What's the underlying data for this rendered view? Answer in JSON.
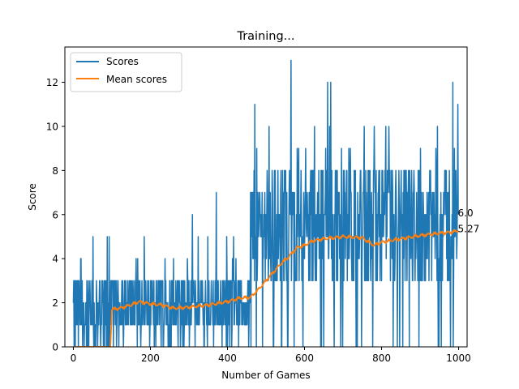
{
  "chart_data": {
    "type": "line",
    "title": "Training...",
    "xlabel": "Number of Games",
    "ylabel": "Score",
    "xlim": [
      -22,
      1022
    ],
    "ylim": [
      0,
      13.6
    ],
    "xticks": [
      0,
      200,
      400,
      600,
      800,
      1000
    ],
    "yticks": [
      0,
      2,
      4,
      6,
      8,
      10,
      12
    ],
    "grid": false,
    "legend_position": "top-left",
    "series": [
      {
        "name": "Scores",
        "color": "#1f77b4",
        "style": "noisy game scores",
        "n_games": 1000,
        "segments": [
          {
            "x_from": 0,
            "x_to": 95,
            "typical_low": 0,
            "typical_high": 3,
            "max": 5
          },
          {
            "x_from": 95,
            "x_to": 460,
            "typical_low": 1,
            "typical_high": 3,
            "max": 7
          },
          {
            "x_from": 460,
            "x_to": 1000,
            "typical_low": 3,
            "typical_high": 8,
            "max": 13
          }
        ],
        "notable_spikes": [
          {
            "x": 88,
            "y": 5
          },
          {
            "x": 93,
            "y": 5
          },
          {
            "x": 309,
            "y": 6
          },
          {
            "x": 371,
            "y": 7
          },
          {
            "x": 471,
            "y": 11
          },
          {
            "x": 476,
            "y": 9
          },
          {
            "x": 565,
            "y": 13
          },
          {
            "x": 581,
            "y": 9
          },
          {
            "x": 660,
            "y": 12
          },
          {
            "x": 668,
            "y": 12
          },
          {
            "x": 985,
            "y": 12
          },
          {
            "x": 998,
            "y": 11
          }
        ],
        "last_value": 6.0
      },
      {
        "name": "Mean scores",
        "color": "#ff7f0e",
        "points": [
          [
            0,
            0
          ],
          [
            50,
            0
          ],
          [
            96,
            0
          ],
          [
            100,
            1.7
          ],
          [
            120,
            1.75
          ],
          [
            150,
            1.9
          ],
          [
            170,
            2.05
          ],
          [
            200,
            1.95
          ],
          [
            230,
            1.9
          ],
          [
            260,
            1.75
          ],
          [
            300,
            1.8
          ],
          [
            350,
            1.9
          ],
          [
            400,
            2.05
          ],
          [
            430,
            2.2
          ],
          [
            460,
            2.25
          ],
          [
            480,
            2.6
          ],
          [
            500,
            3.0
          ],
          [
            520,
            3.4
          ],
          [
            540,
            3.8
          ],
          [
            560,
            4.1
          ],
          [
            580,
            4.5
          ],
          [
            600,
            4.6
          ],
          [
            620,
            4.8
          ],
          [
            650,
            4.9
          ],
          [
            700,
            5.0
          ],
          [
            750,
            4.95
          ],
          [
            780,
            4.6
          ],
          [
            800,
            4.75
          ],
          [
            850,
            4.9
          ],
          [
            900,
            5.05
          ],
          [
            950,
            5.15
          ],
          [
            980,
            5.2
          ],
          [
            1000,
            5.27
          ]
        ],
        "last_value": 5.27
      }
    ],
    "annotations": [
      {
        "text": "6.0",
        "x": 1000,
        "y": 6.0
      },
      {
        "text": "5.27",
        "x": 1000,
        "y": 5.27
      }
    ]
  }
}
